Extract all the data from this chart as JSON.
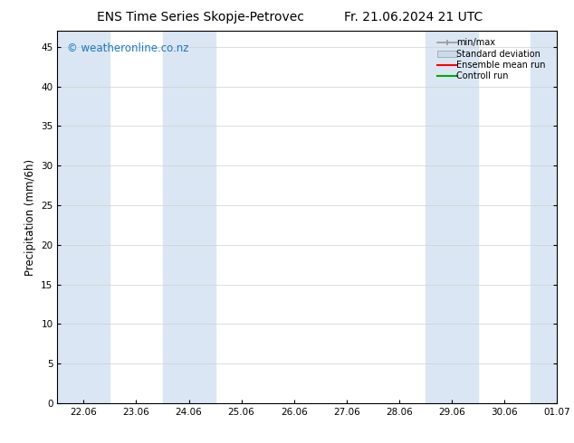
{
  "title_left": "ENS Time Series Skopje-Petrovec",
  "title_right": "Fr. 21.06.2024 21 UTC",
  "ylabel": "Precipitation (mm/6h)",
  "watermark": "© weatheronline.co.nz",
  "xtick_labels": [
    "22.06",
    "23.06",
    "24.06",
    "25.06",
    "26.06",
    "27.06",
    "28.06",
    "29.06",
    "30.06",
    "01.07"
  ],
  "ytick_values": [
    0,
    5,
    10,
    15,
    20,
    25,
    30,
    35,
    40,
    45
  ],
  "ymax": 47,
  "ymin": 0,
  "xmin": -0.5,
  "xmax": 8.5,
  "bg_color": "#ffffff",
  "plot_bg_color": "#ffffff",
  "shaded_color": "#dae6f3",
  "shaded_regions": [
    [
      -0.5,
      0.5
    ],
    [
      1.5,
      2.5
    ],
    [
      6.5,
      7.5
    ],
    [
      8.5,
      9.0
    ]
  ],
  "legend_labels": [
    "min/max",
    "Standard deviation",
    "Ensemble mean run",
    "Controll run"
  ],
  "legend_colors": [
    "#999999",
    "#c8dced",
    "#ff0000",
    "#00aa00"
  ],
  "title_fontsize": 10,
  "tick_fontsize": 7.5,
  "ylabel_fontsize": 8.5,
  "watermark_color": "#1a7abf",
  "watermark_fontsize": 8.5
}
